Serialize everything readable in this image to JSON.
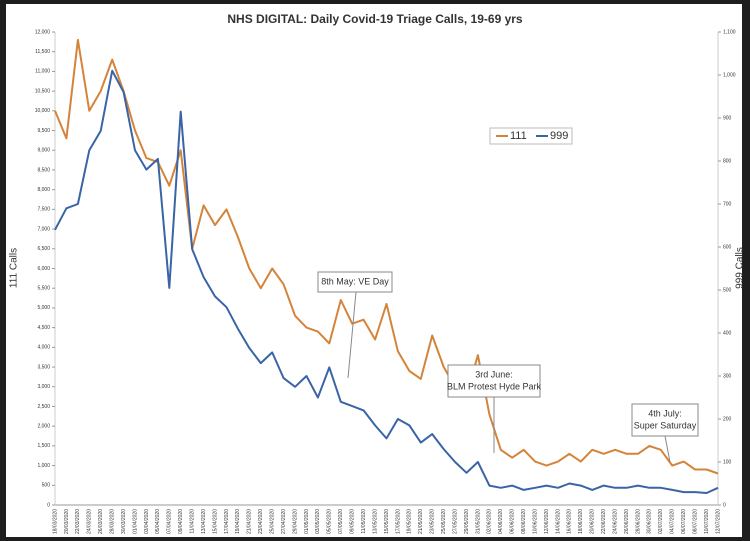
{
  "chart_data": {
    "type": "line",
    "title": "NHS DIGITAL: Daily Covid-19 Triage Calls, 19-69 yrs",
    "y_label": "111 Calls",
    "y2_label": "999 Calls",
    "categories": [
      "18/03/2020",
      "20/03/2020",
      "22/03/2020",
      "24/03/2020",
      "26/03/2020",
      "28/03/2020",
      "30/03/2020",
      "01/04/2020",
      "03/04/2020",
      "05/04/2020",
      "07/04/2020",
      "09/04/2020",
      "11/04/2020",
      "13/04/2020",
      "15/04/2020",
      "17/04/2020",
      "19/04/2020",
      "21/04/2020",
      "23/04/2020",
      "25/04/2020",
      "27/04/2020",
      "29/04/2020",
      "01/05/2020",
      "03/05/2020",
      "05/05/2020",
      "07/05/2020",
      "09/05/2020",
      "11/05/2020",
      "13/05/2020",
      "15/05/2020",
      "17/05/2020",
      "19/05/2020",
      "21/05/2020",
      "23/05/2020",
      "25/05/2020",
      "27/05/2020",
      "29/05/2020",
      "31/05/2020",
      "02/06/2020",
      "04/06/2020",
      "06/06/2020",
      "08/06/2020",
      "10/06/2020",
      "12/06/2020",
      "14/06/2020",
      "16/06/2020",
      "18/06/2020",
      "20/06/2020",
      "22/06/2020",
      "24/06/2020",
      "26/06/2020",
      "28/06/2020",
      "30/06/2020",
      "02/07/2020",
      "04/07/2020",
      "06/07/2020",
      "08/07/2020",
      "10/07/2020",
      "12/07/2020"
    ],
    "series": [
      {
        "name": "111",
        "color": "#d4843a",
        "values": [
          10000,
          9300,
          11800,
          10000,
          10500,
          11300,
          10500,
          9500,
          8800,
          8700,
          8100,
          9000,
          6500,
          7600,
          7100,
          7500,
          6800,
          6000,
          5500,
          6000,
          5600,
          4800,
          4500,
          4400,
          4100,
          5200,
          4600,
          4700,
          4200,
          5100,
          3900,
          3400,
          3200,
          4300,
          3500,
          3000,
          2800,
          3800,
          2300,
          1400,
          1200,
          1400,
          1100,
          1000,
          1100,
          1300,
          1100,
          1400,
          1300,
          1400,
          1300,
          1300,
          1500,
          1400,
          1000,
          1100,
          900,
          900,
          800
        ]
      },
      {
        "name": "999",
        "color": "#3a64a8",
        "axis": "y2",
        "values": [
          640,
          690,
          700,
          825,
          870,
          1010,
          960,
          825,
          780,
          805,
          505,
          915,
          595,
          530,
          485,
          460,
          410,
          365,
          330,
          355,
          295,
          275,
          300,
          250,
          320,
          240,
          230,
          220,
          185,
          155,
          200,
          185,
          145,
          165,
          130,
          100,
          75,
          100,
          45,
          40,
          45,
          35,
          40,
          45,
          40,
          50,
          45,
          35,
          45,
          40,
          40,
          45,
          40,
          40,
          35,
          30,
          30,
          28,
          40
        ]
      }
    ],
    "ylim": [
      0,
      12000
    ],
    "yticks": [
      0,
      500,
      {
        "value": 1000,
        "label": "1,000"
      },
      {
        "value": 1500,
        "label": "1,500"
      },
      {
        "value": 2000,
        "label": "2,000"
      },
      {
        "value": 2500,
        "label": "2,500"
      },
      {
        "value": 3000,
        "label": "3,000"
      },
      {
        "value": 3500,
        "label": "3,500"
      },
      {
        "value": 4000,
        "label": "4,000"
      },
      {
        "value": 4500,
        "label": "4,500"
      },
      {
        "value": 5000,
        "label": "5,000"
      },
      {
        "value": 5500,
        "label": "5,500"
      },
      {
        "value": 6000,
        "label": "6,000"
      },
      {
        "value": 6500,
        "label": "6,500"
      },
      {
        "value": 7000,
        "label": "7,000"
      },
      {
        "value": 7500,
        "label": "7,500"
      },
      {
        "value": 8000,
        "label": "8,000"
      },
      {
        "value": 8500,
        "label": "8,500"
      },
      {
        "value": 9000,
        "label": "9,000"
      },
      {
        "value": 9500,
        "label": "9,500"
      },
      {
        "value": 10000,
        "label": "10,000"
      },
      {
        "value": 10500,
        "label": "10,500"
      },
      {
        "value": 11000,
        "label": "11,000"
      },
      {
        "value": 11500,
        "label": "11,500"
      },
      {
        "value": 12000,
        "label": "12,000"
      }
    ],
    "y2lim": [
      0,
      1100
    ],
    "y2ticks": [
      0,
      100,
      200,
      300,
      400,
      500,
      600,
      700,
      800,
      900,
      {
        "value": 1000,
        "label": "1,000"
      },
      {
        "value": 1100,
        "label": "1,100"
      }
    ],
    "legend": "upper right",
    "annotations": [
      {
        "lines": [
          "8th May: VE Day"
        ]
      },
      {
        "lines": [
          "3rd June:",
          "BLM Protest Hyde Park"
        ]
      },
      {
        "lines": [
          "4th July:",
          "Super Saturday"
        ]
      }
    ]
  }
}
